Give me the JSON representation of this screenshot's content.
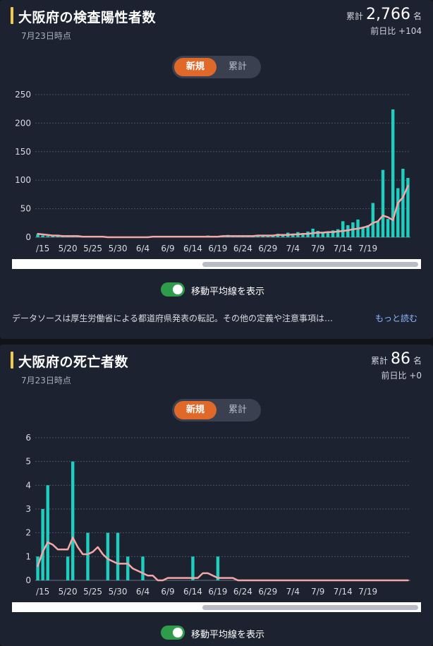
{
  "cards": [
    {
      "title": "大阪府の検査陽性者数",
      "as_of": "7月23日時点",
      "total_label": "累計",
      "total_value": "2,766",
      "total_unit": "名",
      "diff_label": "前日比",
      "diff_value": "+104",
      "toggle": {
        "new": "新規",
        "cumulative": "累計"
      },
      "moving_average_label": "移動平均線を表示",
      "source_text": "データソースは厚生労働省による都道府県発表の転記。その他の定義や注意事項は…",
      "more_link": "もっと読む"
    },
    {
      "title": "大阪府の死亡者数",
      "as_of": "7月23日時点",
      "total_label": "累計",
      "total_value": "86",
      "total_unit": "名",
      "diff_label": "前日比",
      "diff_value": "+0",
      "toggle": {
        "new": "新規",
        "cumulative": "累計"
      },
      "moving_average_label": "移動平均線を表示"
    }
  ],
  "colors": {
    "bar": "#1ecfc0",
    "moving_average": "#f4a7a7",
    "accent": "#e0692a",
    "title_bar": "#f2c94c",
    "switch_on": "#2e9c4a"
  },
  "chart_data": [
    {
      "type": "bar",
      "start_date": "5/14",
      "x_tick_labels": [
        "/15",
        "5/20",
        "5/25",
        "5/30",
        "6/4",
        "6/9",
        "6/14",
        "6/19",
        "6/24",
        "6/29",
        "7/4",
        "7/9",
        "7/14",
        "7/19"
      ],
      "y_ticks": [
        0,
        50,
        100,
        150,
        200,
        250
      ],
      "ylim": [
        0,
        250
      ],
      "grid": true,
      "series": [
        {
          "values": [
            5,
            3,
            2,
            3,
            2,
            2,
            1,
            2,
            1,
            1,
            0,
            0,
            1,
            0,
            0,
            0,
            1,
            0,
            0,
            0,
            0,
            1,
            0,
            1,
            0,
            1,
            1,
            0,
            1,
            0,
            1,
            0,
            0,
            2,
            3,
            2,
            2,
            3,
            4,
            3,
            2,
            2,
            2,
            3,
            2,
            3,
            3,
            4,
            6,
            5,
            8,
            6,
            9,
            7,
            10,
            15,
            11,
            9,
            10,
            12,
            14,
            28,
            21,
            26,
            31,
            18,
            21,
            60,
            28,
            118,
            32,
            224,
            86,
            120,
            104
          ]
        },
        {
          "type": "line",
          "values": [
            6,
            5,
            4,
            3,
            3,
            2,
            2,
            2,
            2,
            1,
            1,
            1,
            1,
            1,
            0,
            0,
            0,
            0,
            0,
            0,
            0,
            0,
            0,
            1,
            1,
            1,
            1,
            1,
            1,
            1,
            1,
            1,
            1,
            1,
            1,
            1,
            1,
            2,
            2,
            2,
            2,
            2,
            2,
            2,
            3,
            3,
            3,
            3,
            4,
            4,
            4,
            5,
            5,
            6,
            6,
            7,
            8,
            8,
            9,
            9,
            10,
            11,
            12,
            14,
            15,
            17,
            19,
            25,
            28,
            38,
            35,
            30,
            60,
            70,
            90
          ]
        }
      ]
    },
    {
      "type": "bar",
      "start_date": "5/14",
      "x_tick_labels": [
        "/15",
        "5/20",
        "5/25",
        "5/30",
        "6/4",
        "6/9",
        "6/14",
        "6/19",
        "6/24",
        "6/29",
        "7/4",
        "7/9",
        "7/14",
        "7/19"
      ],
      "y_ticks": [
        0,
        1,
        2,
        3,
        4,
        5,
        6
      ],
      "ylim": [
        0,
        6
      ],
      "grid": true,
      "series": [
        {
          "values": [
            1,
            3,
            4,
            0,
            0,
            0,
            1,
            5,
            0,
            0,
            2,
            0,
            0,
            0,
            2,
            0,
            2,
            0,
            1,
            0,
            0,
            1,
            0,
            0,
            0,
            0,
            0,
            0,
            0,
            0,
            0,
            1,
            0,
            0,
            0,
            0,
            1,
            0,
            0,
            0,
            0,
            0,
            0,
            0,
            0,
            0,
            0,
            0,
            0,
            0,
            0,
            0,
            0,
            0,
            0,
            0,
            0,
            0,
            0,
            0,
            0,
            0,
            0,
            0,
            0,
            0,
            0,
            0,
            0,
            0,
            0,
            0,
            0,
            0,
            0
          ]
        },
        {
          "type": "line",
          "values": [
            0.6,
            1.2,
            1.6,
            1.5,
            1.3,
            1.3,
            1.3,
            1.8,
            1.4,
            1.1,
            1.1,
            1.2,
            1.4,
            1.1,
            0.9,
            0.8,
            0.7,
            0.7,
            0.7,
            0.5,
            0.4,
            0.3,
            0.2,
            0.2,
            0.0,
            0.0,
            0.1,
            0.1,
            0.1,
            0.1,
            0.1,
            0.1,
            0.1,
            0.3,
            0.3,
            0.2,
            0.1,
            0.1,
            0.1,
            0.1,
            0.0,
            0.0,
            0.0,
            0.0,
            0.0,
            0.0,
            0.0,
            0.0,
            0.0,
            0.0,
            0.0,
            0.0,
            0.0,
            0.0,
            0.0,
            0.0,
            0.0,
            0.0,
            0.0,
            0.0,
            0.0,
            0.0,
            0.0,
            0.0,
            0.0,
            0.0,
            0.0,
            0.0,
            0.0,
            0.0,
            0.0,
            0.0,
            0.0,
            0.0,
            0.0
          ]
        }
      ]
    }
  ]
}
